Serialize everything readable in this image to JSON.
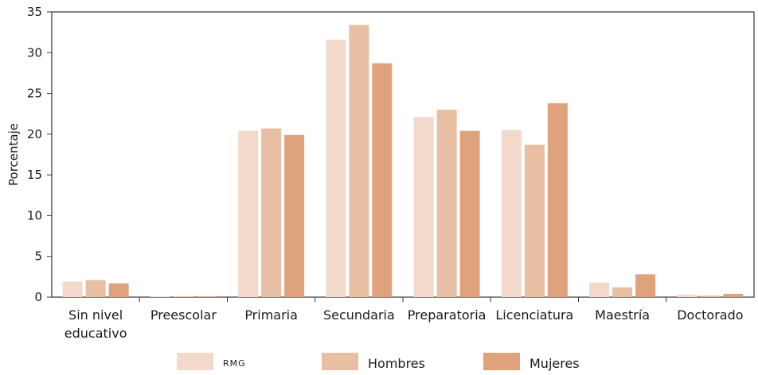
{
  "chart_data": {
    "type": "bar",
    "title": "",
    "xlabel": "",
    "ylabel": "Porcentaje",
    "ylim": [
      0,
      35
    ],
    "yticks": [
      0,
      5,
      10,
      15,
      20,
      25,
      30,
      35
    ],
    "grid": false,
    "legend_position": "bottom",
    "categories": [
      [
        "Sin nivel",
        "educativo"
      ],
      [
        "Preescolar"
      ],
      [
        "Primaria"
      ],
      [
        "Secundaria"
      ],
      [
        "Preparatoria"
      ],
      [
        "Licenciatura"
      ],
      [
        "Maestría"
      ],
      [
        "Doctorado"
      ]
    ],
    "series": [
      {
        "name": "RMG",
        "color": "#f2d9cc",
        "values": [
          1.9,
          0.1,
          20.4,
          31.6,
          22.1,
          20.5,
          1.8,
          0.3
        ]
      },
      {
        "name": "Hombres",
        "color": "#e8bfa3",
        "values": [
          2.1,
          0.1,
          20.7,
          33.4,
          23.0,
          18.7,
          1.2,
          0.2
        ]
      },
      {
        "name": "Mujeres",
        "color": "#dea37d",
        "values": [
          1.7,
          0.1,
          19.9,
          28.7,
          20.4,
          23.8,
          2.8,
          0.4
        ]
      }
    ]
  }
}
